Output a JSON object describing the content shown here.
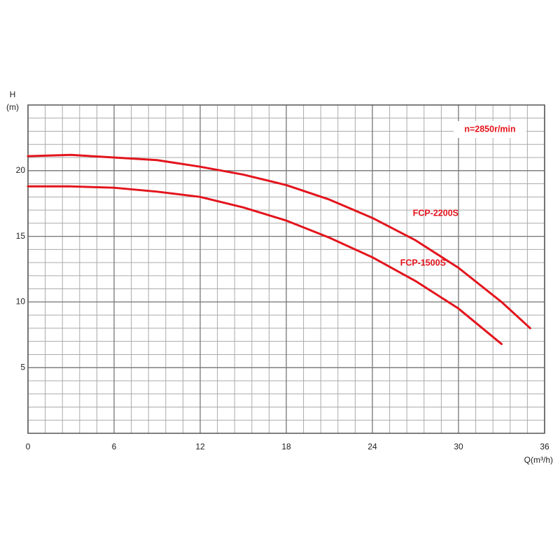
{
  "chart_data": {
    "type": "line",
    "ylabel": "H",
    "ylabel_unit": "(m)",
    "xlabel": "Q(m³/h)",
    "annotation": "n=2850r/min",
    "xlim": [
      0,
      36
    ],
    "xticks": [
      0,
      6,
      12,
      18,
      24,
      30,
      36
    ],
    "ylim": [
      0,
      25
    ],
    "yticks": [
      5,
      10,
      15,
      20
    ],
    "grid": true,
    "minor_grid_divisions": 5,
    "series": [
      {
        "name": "FCP-2200S",
        "color": "#e3141c",
        "x": [
          0,
          3,
          6,
          9,
          12,
          15,
          18,
          21,
          24,
          27,
          30,
          33,
          35
        ],
        "values": [
          21.1,
          21.2,
          21.0,
          20.8,
          20.3,
          19.7,
          18.9,
          17.8,
          16.4,
          14.7,
          12.6,
          10.0,
          8.0
        ]
      },
      {
        "name": "FCP-1500S",
        "color": "#e3141c",
        "x": [
          0,
          3,
          6,
          9,
          12,
          15,
          18,
          21,
          24,
          27,
          30,
          33
        ],
        "values": [
          18.8,
          18.8,
          18.7,
          18.4,
          18.0,
          17.2,
          16.2,
          14.9,
          13.4,
          11.6,
          9.5,
          6.8
        ]
      }
    ]
  }
}
